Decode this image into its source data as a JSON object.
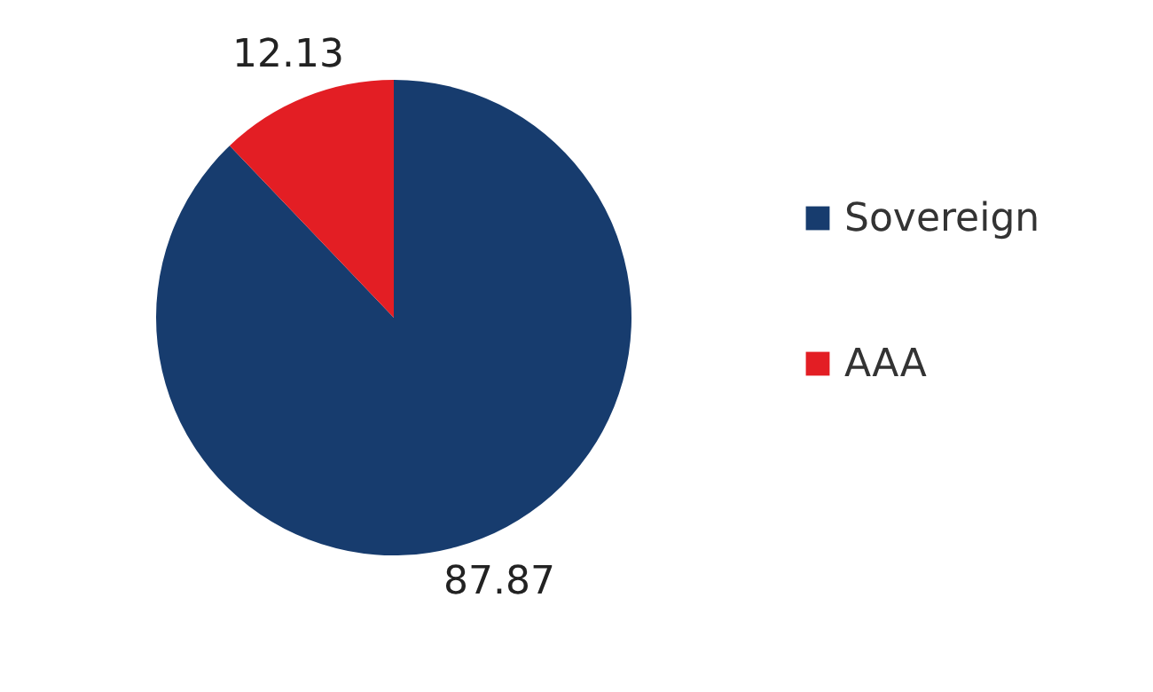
{
  "chart_data": {
    "type": "pie",
    "categories": [
      "Sovereign",
      "AAA"
    ],
    "values": [
      87.87,
      12.13
    ],
    "colors": [
      "#173c6e",
      "#e31e24"
    ],
    "data_labels": true,
    "legend": "right"
  }
}
